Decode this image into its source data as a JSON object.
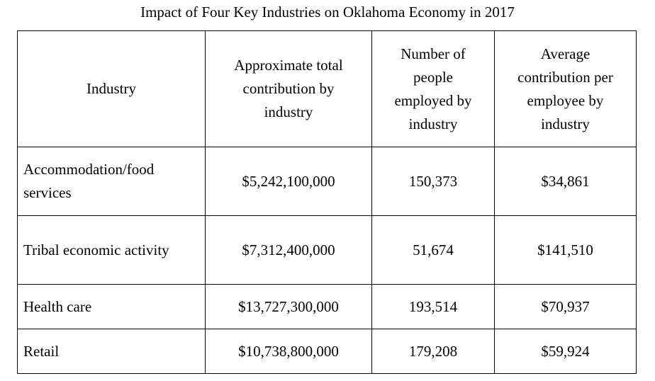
{
  "title": "Impact of Four Key Industries on Oklahoma Economy in 2017",
  "chart_data": {
    "type": "table",
    "title": "Impact of Four Key Industries on Oklahoma Economy in 2017",
    "columns": [
      "Industry",
      "Approximate total contribution by industry",
      "Number of people employed by industry",
      "Average contribution per employee by industry"
    ],
    "rows": [
      {
        "industry": "Accommodation/food services",
        "total_contribution": "$5,242,100,000",
        "employed": "150,373",
        "avg_per_employee": "$34,861"
      },
      {
        "industry": "Tribal economic activity",
        "total_contribution": "$7,312,400,000",
        "employed": "51,674",
        "avg_per_employee": "$141,510"
      },
      {
        "industry": "Health care",
        "total_contribution": "$13,727,300,000",
        "employed": "193,514",
        "avg_per_employee": "$70,937"
      },
      {
        "industry": "Retail",
        "total_contribution": "$10,738,800,000",
        "employed": "179,208",
        "avg_per_employee": "$59,924"
      }
    ]
  }
}
